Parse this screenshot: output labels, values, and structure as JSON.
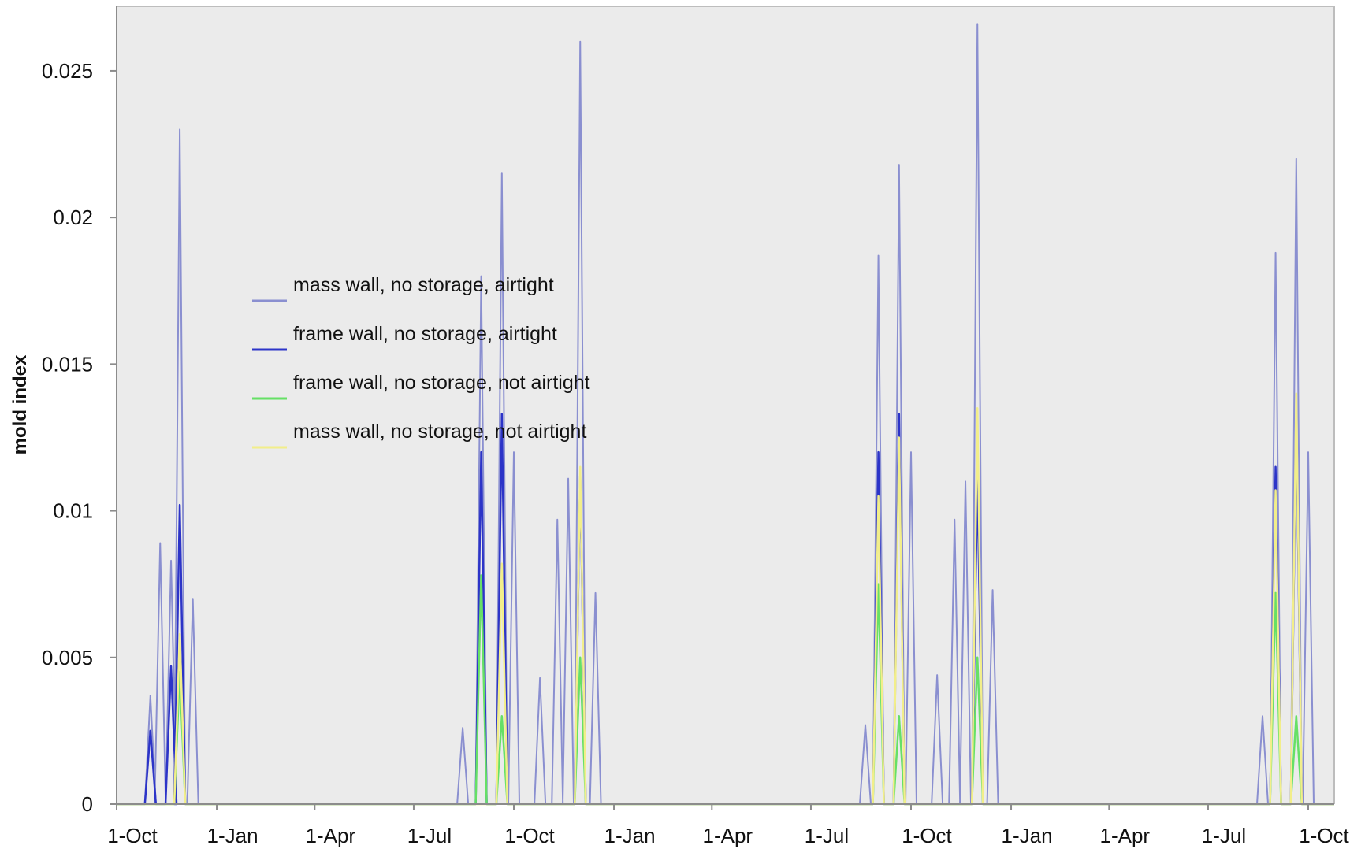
{
  "chart_data": {
    "type": "line",
    "title": "",
    "xlabel": "",
    "ylabel": "mold index",
    "x_ticks": [
      "1-Oct",
      "1-Jan",
      "1-Apr",
      "1-Jul",
      "1-Oct",
      "1-Jan",
      "1-Apr",
      "1-Jul",
      "1-Oct",
      "1-Jan",
      "1-Apr",
      "1-Jul",
      "1-Oct"
    ],
    "y_ticks": [
      "0",
      "0.005",
      "0.01",
      "0.015",
      "0.02",
      "0.025"
    ],
    "ylim": [
      0,
      0.0272
    ],
    "grid": false,
    "legend_position": "upper-left inside plot",
    "colors": {
      "plot_background": "#ebebeb",
      "axis": "#888888"
    },
    "series": [
      {
        "name": "mass wall, no storage, airtight",
        "color": "#8a8fd0",
        "peaks": [
          [
            "1-Oct",
            0
          ],
          [
            "1-Nov",
            0.0037
          ],
          [
            "10-Nov",
            0.0089
          ],
          [
            "20-Nov",
            0.0083
          ],
          [
            "28-Nov",
            0.023
          ],
          [
            "10-Dec",
            0.007
          ],
          [
            "15-Aug",
            0.0026
          ],
          [
            "1-Sep",
            0.018
          ],
          [
            "20-Sep",
            0.0215
          ],
          [
            "1-Oct",
            0.012
          ],
          [
            "25-Oct",
            0.0043
          ],
          [
            "10-Nov",
            0.0097
          ],
          [
            "20-Nov",
            0.0111
          ],
          [
            "1-Dec",
            0.026
          ],
          [
            "15-Dec",
            0.0072
          ],
          [
            "20-Aug",
            0.0027
          ],
          [
            "1-Sep",
            0.0187
          ],
          [
            "20-Sep",
            0.0218
          ],
          [
            "1-Oct",
            0.012
          ],
          [
            "25-Oct",
            0.0044
          ],
          [
            "10-Nov",
            0.0097
          ],
          [
            "20-Nov",
            0.011
          ],
          [
            "1-Dec",
            0.0266
          ],
          [
            "15-Dec",
            0.0073
          ],
          [
            "20-Aug",
            0.003
          ],
          [
            "1-Sep",
            0.0188
          ],
          [
            "20-Sep",
            0.022
          ],
          [
            "1-Oct",
            0.012
          ]
        ]
      },
      {
        "name": "frame wall, no storage, airtight",
        "color": "#2c34c8",
        "peaks": [
          [
            "1-Nov",
            0.0025
          ],
          [
            "20-Nov",
            0.0047
          ],
          [
            "28-Nov",
            0.0102
          ],
          [
            "1-Sep",
            0.012
          ],
          [
            "20-Sep",
            0.0133
          ],
          [
            "1-Dec",
            0.0112
          ],
          [
            "1-Sep",
            0.012
          ],
          [
            "20-Sep",
            0.0133
          ],
          [
            "1-Dec",
            0.0112
          ],
          [
            "1-Sep",
            0.0115
          ],
          [
            "20-Sep",
            0.0132
          ]
        ]
      },
      {
        "name": "frame wall,  no storage, not airtight",
        "color": "#66e066",
        "peaks": [
          [
            "28-Nov",
            0.0045
          ],
          [
            "1-Sep",
            0.0078
          ],
          [
            "20-Sep",
            0.003
          ],
          [
            "1-Dec",
            0.005
          ],
          [
            "1-Sep",
            0.0075
          ],
          [
            "20-Sep",
            0.003
          ],
          [
            "1-Dec",
            0.005
          ],
          [
            "1-Sep",
            0.0072
          ],
          [
            "20-Sep",
            0.003
          ]
        ]
      },
      {
        "name": "mass wall, no storage, not airtight",
        "color": "#f2ee8a",
        "peaks": [
          [
            "28-Nov",
            0.0058
          ],
          [
            "20-Sep",
            0.0082
          ],
          [
            "1-Dec",
            0.0115
          ],
          [
            "1-Sep",
            0.0105
          ],
          [
            "20-Sep",
            0.0125
          ],
          [
            "1-Dec",
            0.0135
          ],
          [
            "1-Sep",
            0.0107
          ],
          [
            "20-Sep",
            0.014
          ]
        ]
      }
    ]
  }
}
